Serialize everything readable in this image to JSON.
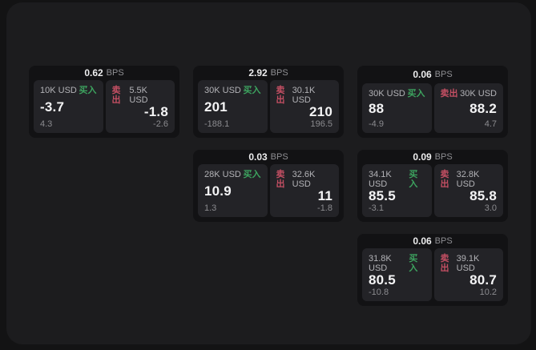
{
  "labels": {
    "buy": "买入",
    "sell": "卖出",
    "bps_unit": "BPS"
  },
  "colors": {
    "buy_accent": "#3da35f",
    "sell_accent": "#c44f63",
    "panel_bg": "#1c1c1e",
    "card_bg": "#121214",
    "tile_bg": "#232327"
  },
  "cards": [
    {
      "bps": "0.62",
      "buy": {
        "size": "10K USD",
        "price": "-3.7",
        "sub": "4.3"
      },
      "sell": {
        "size": "5.5K USD",
        "price": "-1.8",
        "sub": "-2.6"
      }
    },
    {
      "bps": "2.92",
      "buy": {
        "size": "30K USD",
        "price": "201",
        "sub": "-188.1"
      },
      "sell": {
        "size": "30.1K USD",
        "price": "210",
        "sub": "196.5"
      }
    },
    {
      "bps": "0.06",
      "buy": {
        "size": "30K USD",
        "price": "88",
        "sub": "-4.9"
      },
      "sell": {
        "size": "30K USD",
        "price": "88.2",
        "sub": "4.7"
      }
    },
    {
      "bps": "0.03",
      "buy": {
        "size": "28K USD",
        "price": "10.9",
        "sub": "1.3"
      },
      "sell": {
        "size": "32.6K USD",
        "price": "11",
        "sub": "-1.8"
      }
    },
    {
      "bps": "0.09",
      "buy": {
        "size": "34.1K USD",
        "price": "85.5",
        "sub": "-3.1"
      },
      "sell": {
        "size": "32.8K USD",
        "price": "85.8",
        "sub": "3.0"
      }
    },
    {
      "bps": "0.06",
      "buy": {
        "size": "31.8K USD",
        "price": "80.5",
        "sub": "-10.8"
      },
      "sell": {
        "size": "39.1K USD",
        "price": "80.7",
        "sub": "10.2"
      }
    }
  ]
}
